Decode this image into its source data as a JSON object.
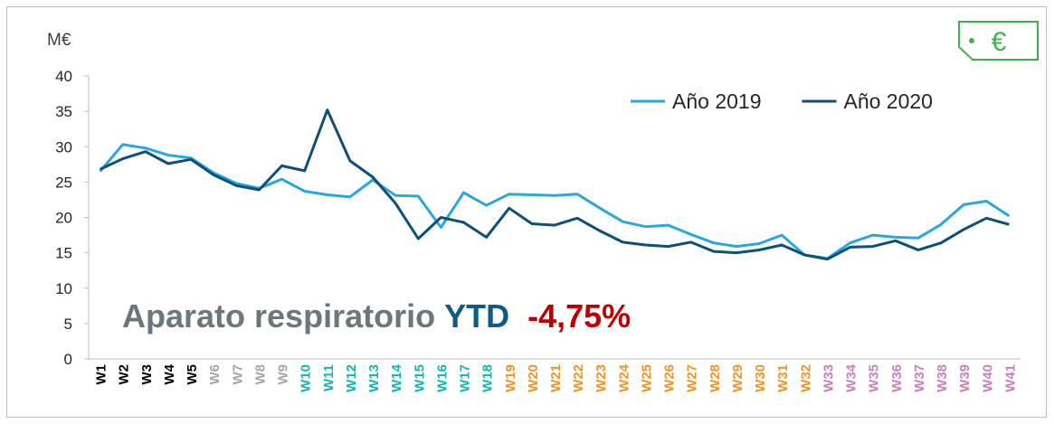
{
  "chart_data": {
    "type": "line",
    "y_label": "M€",
    "badge": "€",
    "annotation": {
      "parts": [
        "Aparato respiratorio",
        "YTD",
        "-4,75%"
      ],
      "colors": [
        "#6d767b",
        "#0f5a86",
        "#c00000"
      ]
    },
    "categories": [
      "W1",
      "W2",
      "W3",
      "W4",
      "W5",
      "W6",
      "W7",
      "W8",
      "W9",
      "W10",
      "W11",
      "W12",
      "W13",
      "W14",
      "W15",
      "W16",
      "W17",
      "W18",
      "W19",
      "W20",
      "W21",
      "W22",
      "W23",
      "W24",
      "W25",
      "W26",
      "W27",
      "W28",
      "W29",
      "W30",
      "W31",
      "W32",
      "W33",
      "W34",
      "W35",
      "W36",
      "W37",
      "W38",
      "W39",
      "W40",
      "W41"
    ],
    "category_colors": [
      "#000000",
      "#000000",
      "#000000",
      "#000000",
      "#000000",
      "#a6a6a6",
      "#a6a6a6",
      "#a6a6a6",
      "#a6a6a6",
      "#13b5b1",
      "#13b5b1",
      "#13b5b1",
      "#13b5b1",
      "#13b5b1",
      "#13b5b1",
      "#13b5b1",
      "#13b5b1",
      "#13b5b1",
      "#f39224",
      "#f39224",
      "#f39224",
      "#f39224",
      "#f39224",
      "#f39224",
      "#f39224",
      "#f39224",
      "#f39224",
      "#f39224",
      "#f39224",
      "#f39224",
      "#f39224",
      "#f39224",
      "#c882b8",
      "#c882b8",
      "#c882b8",
      "#c882b8",
      "#c882b8",
      "#c882b8",
      "#c882b8",
      "#c882b8",
      "#c882b8"
    ],
    "series": [
      {
        "name": "Año 2019",
        "color": "#2aa7df",
        "values": [
          26.5,
          30.3,
          29.8,
          28.8,
          28.4,
          26.3,
          24.8,
          24.1,
          25.4,
          23.7,
          23.2,
          22.9,
          25.3,
          23.1,
          23.0,
          18.6,
          23.5,
          21.7,
          23.3,
          23.2,
          23.1,
          23.3,
          21.3,
          19.4,
          18.7,
          18.9,
          17.6,
          16.4,
          15.9,
          16.3,
          17.5,
          14.7,
          14.2,
          16.4,
          17.5,
          17.2,
          17.1,
          19.0,
          21.8,
          22.3,
          20.2
        ]
      },
      {
        "name": "Año 2020",
        "color": "#0c4f7b",
        "values": [
          26.8,
          28.3,
          29.3,
          27.6,
          28.2,
          26.0,
          24.5,
          23.9,
          27.3,
          26.6,
          35.2,
          28.0,
          25.7,
          22.0,
          17.0,
          20.0,
          19.3,
          17.2,
          21.3,
          19.1,
          18.9,
          19.9,
          18.1,
          16.5,
          16.1,
          15.9,
          16.5,
          15.2,
          15.0,
          15.4,
          16.1,
          14.7,
          14.1,
          15.8,
          15.9,
          16.7,
          15.4,
          16.4,
          18.3,
          19.9,
          19.0
        ]
      }
    ],
    "ylim": [
      0,
      40
    ],
    "yticks": [
      0,
      5,
      10,
      15,
      20,
      25,
      30,
      35,
      40
    ],
    "legend": "upper right",
    "grid": false
  }
}
